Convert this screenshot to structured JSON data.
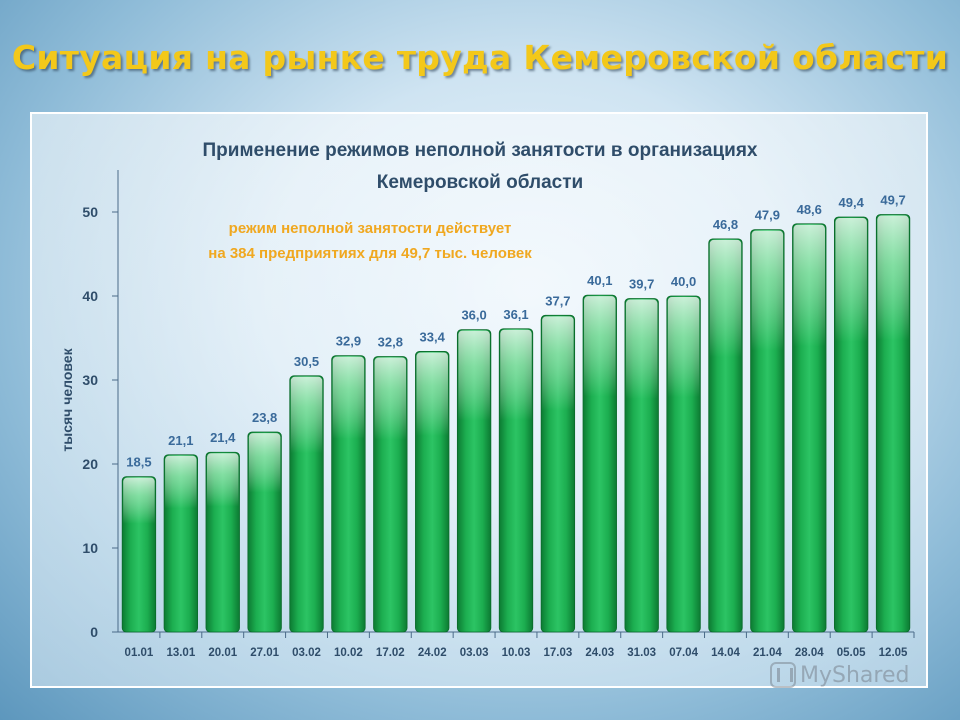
{
  "slide": {
    "title": "Ситуация на рынке труда Кемеровской области"
  },
  "watermark": {
    "text": "MyShared",
    "icon": "myshared-logo-icon"
  },
  "colors": {
    "title": "#f3c81a",
    "bar_fill": "#1faa4e",
    "bar_highlight": "#8fe6a8",
    "value_label": "#3a6a9a",
    "annotation": "#f0a820",
    "chart_title": "#2f4d6a",
    "axis_text": "#2f4d6a"
  },
  "chart_data": {
    "type": "bar",
    "title_line1": "Применение режимов неполной занятости в организациях",
    "title_line2": "Кемеровской области",
    "annotation_line1": "режим неполной занятости действует",
    "annotation_line2": "на 384 предприятиях для 49,7 тыс. человек",
    "ylabel": "тысяч человек",
    "xlabel": "",
    "ylim": [
      0,
      55
    ],
    "yticks": [
      0,
      10,
      20,
      30,
      40,
      50
    ],
    "grid": false,
    "categories": [
      "01.01",
      "13.01",
      "20.01",
      "27.01",
      "03.02",
      "10.02",
      "17.02",
      "24.02",
      "03.03",
      "10.03",
      "17.03",
      "24.03",
      "31.03",
      "07.04",
      "14.04",
      "21.04",
      "28.04",
      "05.05",
      "12.05"
    ],
    "values": [
      18.5,
      21.1,
      21.4,
      23.8,
      30.5,
      32.9,
      32.8,
      33.4,
      36.0,
      36.1,
      37.7,
      40.1,
      39.7,
      40.0,
      46.8,
      47.9,
      48.6,
      49.4,
      49.7
    ],
    "value_labels": [
      "18,5",
      "21,1",
      "21,4",
      "23,8",
      "30,5",
      "32,9",
      "32,8",
      "33,4",
      "36,0",
      "36,1",
      "37,7",
      "40,1",
      "39,7",
      "40,0",
      "46,8",
      "47,9",
      "48,6",
      "49,4",
      "49,7"
    ]
  }
}
